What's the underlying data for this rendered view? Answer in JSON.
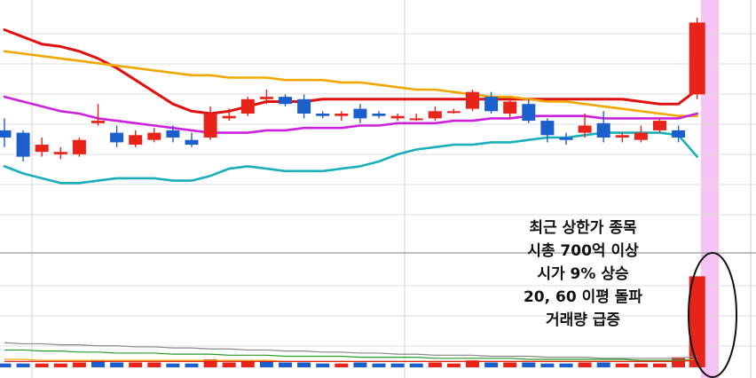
{
  "chart_data": [
    {
      "type": "candlestick",
      "panel": "price",
      "grid": true,
      "x": [
        1,
        2,
        3,
        4,
        5,
        6,
        7,
        8,
        9,
        10,
        11,
        12,
        13,
        14,
        15,
        16,
        17,
        18,
        19,
        20,
        21,
        22,
        23,
        24,
        25,
        26,
        27,
        28,
        29,
        30,
        31,
        32,
        33,
        34,
        35,
        36,
        37,
        38
      ],
      "ylim": [
        0,
        100
      ],
      "candles": [
        {
          "o": 53,
          "h": 58,
          "l": 46,
          "c": 50
        },
        {
          "o": 52,
          "h": 53,
          "l": 40,
          "c": 42
        },
        {
          "o": 44,
          "h": 50,
          "l": 42,
          "c": 47
        },
        {
          "o": 43,
          "h": 46,
          "l": 41,
          "c": 44
        },
        {
          "o": 43,
          "h": 50,
          "l": 42,
          "c": 49
        },
        {
          "o": 56,
          "h": 64,
          "l": 55,
          "c": 57
        },
        {
          "o": 52,
          "h": 55,
          "l": 46,
          "c": 48
        },
        {
          "o": 47,
          "h": 53,
          "l": 46,
          "c": 51
        },
        {
          "o": 49,
          "h": 54,
          "l": 48,
          "c": 52
        },
        {
          "o": 53,
          "h": 55,
          "l": 48,
          "c": 50
        },
        {
          "o": 49,
          "h": 52,
          "l": 46,
          "c": 47
        },
        {
          "o": 50,
          "h": 63,
          "l": 49,
          "c": 60
        },
        {
          "o": 58,
          "h": 62,
          "l": 57,
          "c": 59
        },
        {
          "o": 60,
          "h": 67,
          "l": 59,
          "c": 66
        },
        {
          "o": 66,
          "h": 70,
          "l": 64,
          "c": 67
        },
        {
          "o": 67,
          "h": 68,
          "l": 63,
          "c": 64
        },
        {
          "o": 66,
          "h": 68,
          "l": 58,
          "c": 60
        },
        {
          "o": 60,
          "h": 61,
          "l": 58,
          "c": 59
        },
        {
          "o": 59,
          "h": 61,
          "l": 57,
          "c": 60
        },
        {
          "o": 62,
          "h": 64,
          "l": 56,
          "c": 58
        },
        {
          "o": 60,
          "h": 61,
          "l": 58,
          "c": 59
        },
        {
          "o": 58,
          "h": 60,
          "l": 57,
          "c": 59
        },
        {
          "o": 58,
          "h": 60,
          "l": 57,
          "c": 58
        },
        {
          "o": 58,
          "h": 63,
          "l": 57,
          "c": 61
        },
        {
          "o": 61,
          "h": 62,
          "l": 60,
          "c": 61
        },
        {
          "o": 62,
          "h": 70,
          "l": 61,
          "c": 69
        },
        {
          "o": 67,
          "h": 69,
          "l": 60,
          "c": 61
        },
        {
          "o": 60,
          "h": 66,
          "l": 58,
          "c": 65
        },
        {
          "o": 64,
          "h": 66,
          "l": 56,
          "c": 57
        },
        {
          "o": 57,
          "h": 58,
          "l": 48,
          "c": 51
        },
        {
          "o": 50,
          "h": 52,
          "l": 47,
          "c": 49
        },
        {
          "o": 52,
          "h": 60,
          "l": 50,
          "c": 55
        },
        {
          "o": 56,
          "h": 61,
          "l": 48,
          "c": 50
        },
        {
          "o": 50,
          "h": 52,
          "l": 48,
          "c": 51
        },
        {
          "o": 49,
          "h": 55,
          "l": 48,
          "c": 52
        },
        {
          "o": 53,
          "h": 58,
          "l": 52,
          "c": 57
        },
        {
          "o": 53,
          "h": 55,
          "l": 48,
          "c": 50
        },
        {
          "o": 68,
          "h": 100,
          "l": 66,
          "c": 98
        }
      ],
      "series": [
        {
          "values": [
            95,
            92,
            89,
            88,
            86,
            83,
            79,
            74,
            69,
            64,
            61,
            60,
            61,
            63,
            65,
            65,
            65,
            66,
            66,
            66,
            66,
            66,
            66,
            66,
            66,
            66,
            66,
            66,
            66,
            66,
            66,
            66,
            66,
            66,
            65,
            64,
            64,
            70
          ],
          "color": "#e01010"
        },
        {
          "values": [
            86,
            85,
            84,
            83,
            82,
            81,
            80,
            79,
            78,
            77,
            76,
            76,
            75,
            75,
            75,
            74,
            74,
            74,
            73,
            73,
            72,
            71,
            70,
            70,
            69,
            68,
            67,
            67,
            66,
            65,
            65,
            64,
            63,
            62,
            61,
            60,
            59,
            59
          ],
          "color": "#f0a800"
        },
        {
          "values": [
            67,
            65,
            63,
            61,
            60,
            58,
            57,
            56,
            55,
            54,
            53,
            52,
            52,
            52,
            53,
            53,
            54,
            54,
            54,
            55,
            55,
            56,
            56,
            56,
            57,
            57,
            58,
            58,
            59,
            59,
            59,
            59,
            58,
            58,
            58,
            58,
            58,
            60
          ],
          "color": "#cc22dd"
        },
        {
          "values": [
            38,
            35,
            33,
            31,
            31,
            32,
            33,
            33,
            33,
            32,
            32,
            34,
            37,
            38,
            37,
            36,
            36,
            36,
            37,
            38,
            40,
            43,
            45,
            46,
            47,
            47,
            48,
            48,
            49,
            50,
            50,
            51,
            52,
            52,
            52,
            52,
            51,
            42
          ],
          "color": "#1aaeb8"
        }
      ]
    },
    {
      "type": "bar",
      "panel": "volume",
      "grid": true,
      "x": [
        1,
        2,
        3,
        4,
        5,
        6,
        7,
        8,
        9,
        10,
        11,
        12,
        13,
        14,
        15,
        16,
        17,
        18,
        19,
        20,
        21,
        22,
        23,
        24,
        25,
        26,
        27,
        28,
        29,
        30,
        31,
        32,
        33,
        34,
        35,
        36,
        37,
        38
      ],
      "ylim": [
        0,
        100
      ],
      "values": [
        2,
        2,
        2,
        2,
        3,
        5,
        3,
        3,
        3,
        2,
        2,
        6,
        3,
        4,
        4,
        3,
        3,
        2,
        2,
        3,
        2,
        2,
        2,
        3,
        2,
        5,
        3,
        3,
        3,
        2,
        2,
        3,
        3,
        2,
        2,
        2,
        8,
        86
      ],
      "colors": [
        "blue",
        "blue",
        "red",
        "red",
        "red",
        "blue",
        "blue",
        "red",
        "red",
        "blue",
        "blue",
        "red",
        "red",
        "red",
        "blue",
        "blue",
        "blue",
        "blue",
        "red",
        "blue",
        "blue",
        "blue",
        "blue",
        "red",
        "red",
        "red",
        "blue",
        "red",
        "blue",
        "blue",
        "blue",
        "red",
        "blue",
        "red",
        "red",
        "red",
        "red",
        "red"
      ],
      "series": [
        {
          "values": [
            22,
            21,
            21,
            20,
            20,
            19,
            19,
            18,
            18,
            17,
            17,
            16,
            16,
            15,
            15,
            14,
            14,
            13,
            13,
            12,
            12,
            11,
            11,
            10,
            10,
            10,
            9,
            9,
            9,
            8,
            8,
            8,
            7,
            7,
            7,
            7,
            7,
            9
          ],
          "color": "#888888"
        },
        {
          "values": [
            15,
            15,
            14,
            14,
            13,
            13,
            12,
            12,
            12,
            11,
            11,
            11,
            10,
            10,
            10,
            9,
            9,
            9,
            9,
            8,
            8,
            8,
            8,
            7,
            7,
            7,
            7,
            7,
            6,
            6,
            6,
            6,
            6,
            6,
            5,
            5,
            5,
            6
          ],
          "color": "#2a9a2a"
        },
        {
          "values": [
            6,
            6,
            5,
            5,
            5,
            5,
            5,
            5,
            5,
            5,
            5,
            5,
            5,
            5,
            5,
            4,
            4,
            4,
            4,
            4,
            4,
            4,
            4,
            4,
            4,
            4,
            4,
            4,
            4,
            4,
            4,
            4,
            4,
            4,
            4,
            4,
            4,
            6
          ],
          "color": "#f0a800"
        },
        {
          "values": [
            4,
            4,
            4,
            4,
            4,
            4,
            4,
            4,
            4,
            4,
            4,
            4,
            4,
            4,
            4,
            4,
            4,
            4,
            4,
            4,
            4,
            4,
            4,
            4,
            4,
            4,
            4,
            4,
            4,
            4,
            4,
            4,
            4,
            4,
            4,
            4,
            4,
            5
          ],
          "color": "#e01010"
        }
      ]
    }
  ],
  "annotation": {
    "lines": [
      "최근 상한가 종목",
      "시총 700억 이상",
      "시가 9% 상승",
      "20, 60 이평 돌파",
      "거래량 급증"
    ]
  },
  "colors": {
    "up": "#e8231a",
    "down": "#1a5fcc",
    "highlight": "#f6c4f2"
  }
}
